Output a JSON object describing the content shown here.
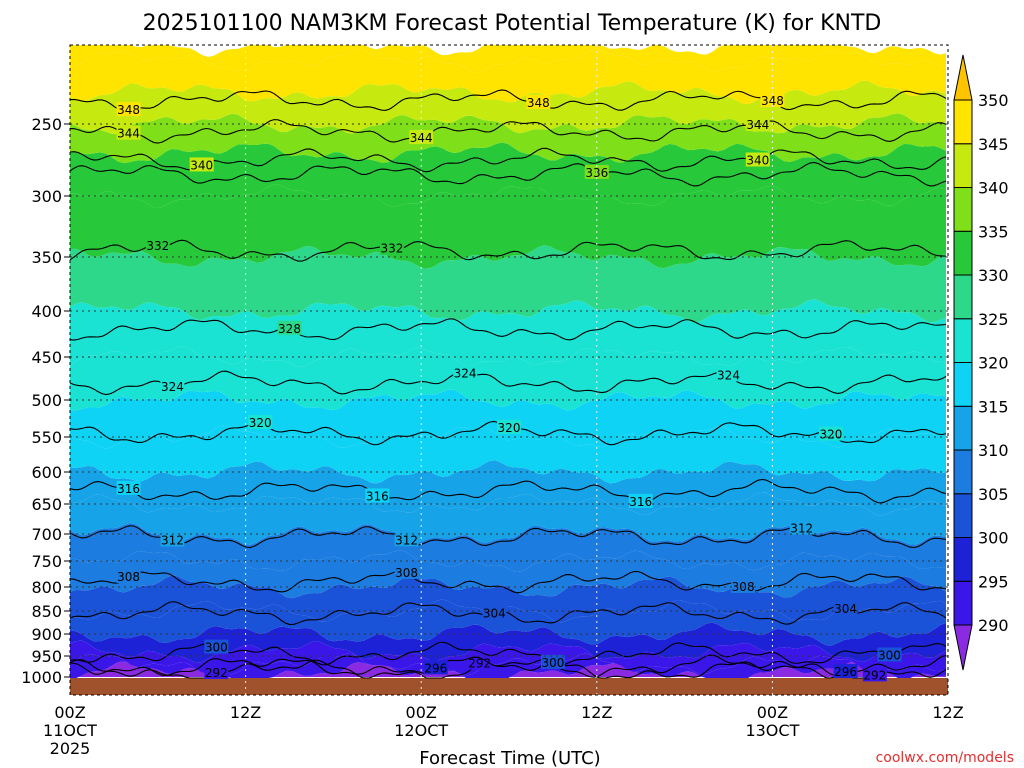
{
  "chart_data": {
    "type": "heatmap",
    "title": "2025101100 NAM3KM Forecast Potential Temperature (K) for KNTD",
    "xlabel": "Forecast Time (UTC)",
    "ylabel": "",
    "credit": "coolwx.com/models",
    "x_range_hours": [
      0,
      60
    ],
    "y_range_hpa": [
      1000,
      200
    ],
    "y_ticks": [
      250,
      300,
      350,
      400,
      450,
      500,
      550,
      600,
      650,
      700,
      750,
      800,
      850,
      900,
      950,
      1000
    ],
    "x_ticks": [
      {
        "hour": 0,
        "l1": "00Z",
        "l2": "11OCT",
        "l3": "2025"
      },
      {
        "hour": 12,
        "l1": "12Z",
        "l2": "",
        "l3": ""
      },
      {
        "hour": 24,
        "l1": "00Z",
        "l2": "12OCT",
        "l3": ""
      },
      {
        "hour": 36,
        "l1": "12Z",
        "l2": "",
        "l3": ""
      },
      {
        "hour": 48,
        "l1": "00Z",
        "l2": "13OCT",
        "l3": ""
      },
      {
        "hour": 60,
        "l1": "12Z",
        "l2": "",
        "l3": ""
      }
    ],
    "colorbar": {
      "levels": [
        290,
        295,
        300,
        305,
        310,
        315,
        320,
        325,
        330,
        335,
        340,
        345,
        350
      ],
      "colors": [
        "#8a2be2",
        "#3b16e8",
        "#1e22d6",
        "#1a52d8",
        "#1c7cdf",
        "#17a3e8",
        "#0fd3f4",
        "#1be3d3",
        "#2ed88a",
        "#27c93a",
        "#7fe01a",
        "#c6ea0f",
        "#ffe400",
        "#ffc400"
      ]
    },
    "bands": [
      {
        "p": 1000,
        "theta": 288
      },
      {
        "p": 990,
        "theta": 291
      },
      {
        "p": 970,
        "theta": 294
      },
      {
        "p": 940,
        "theta": 298
      },
      {
        "p": 900,
        "theta": 302
      },
      {
        "p": 850,
        "theta": 304.5
      },
      {
        "p": 800,
        "theta": 306
      },
      {
        "p": 750,
        "theta": 308
      },
      {
        "p": 700,
        "theta": 310
      },
      {
        "p": 650,
        "theta": 313
      },
      {
        "p": 600,
        "theta": 315.5
      },
      {
        "p": 550,
        "theta": 318
      },
      {
        "p": 500,
        "theta": 320.5
      },
      {
        "p": 450,
        "theta": 323.5
      },
      {
        "p": 400,
        "theta": 327
      },
      {
        "p": 350,
        "theta": 331
      },
      {
        "p": 300,
        "theta": 334
      },
      {
        "p": 270,
        "theta": 337
      },
      {
        "p": 250,
        "theta": 342
      },
      {
        "p": 230,
        "theta": 346
      },
      {
        "p": 210,
        "theta": 349
      },
      {
        "p": 200,
        "theta": 351
      }
    ],
    "contours": [
      {
        "theta": 292,
        "p": 985,
        "labels": [
          {
            "hour": 10,
            "text": "292"
          },
          {
            "hour": 28,
            "text": "292"
          },
          {
            "hour": 55,
            "text": "292"
          }
        ]
      },
      {
        "theta": 296,
        "p": 975,
        "labels": [
          {
            "hour": 25,
            "text": "296"
          },
          {
            "hour": 53,
            "text": "296"
          }
        ]
      },
      {
        "theta": 300,
        "p": 945,
        "labels": [
          {
            "hour": 10,
            "text": "300"
          },
          {
            "hour": 33,
            "text": "300"
          },
          {
            "hour": 56,
            "text": "300"
          }
        ]
      },
      {
        "theta": 304,
        "p": 855,
        "labels": [
          {
            "hour": 29,
            "text": "304"
          },
          {
            "hour": 53,
            "text": "304"
          }
        ]
      },
      {
        "theta": 308,
        "p": 790,
        "labels": [
          {
            "hour": 4,
            "text": "308"
          },
          {
            "hour": 23,
            "text": "308"
          },
          {
            "hour": 46,
            "text": "308"
          }
        ]
      },
      {
        "theta": 312,
        "p": 705,
        "labels": [
          {
            "hour": 7,
            "text": "312"
          },
          {
            "hour": 23,
            "text": "312"
          },
          {
            "hour": 50,
            "text": "312"
          }
        ]
      },
      {
        "theta": 316,
        "p": 630,
        "labels": [
          {
            "hour": 4,
            "text": "316"
          },
          {
            "hour": 21,
            "text": "316"
          },
          {
            "hour": 39,
            "text": "316"
          }
        ]
      },
      {
        "theta": 320,
        "p": 545,
        "labels": [
          {
            "hour": 13,
            "text": "320"
          },
          {
            "hour": 30,
            "text": "320"
          },
          {
            "hour": 52,
            "text": "320"
          }
        ]
      },
      {
        "theta": 324,
        "p": 480,
        "labels": [
          {
            "hour": 7,
            "text": "324"
          },
          {
            "hour": 27,
            "text": "324"
          },
          {
            "hour": 45,
            "text": "324"
          }
        ]
      },
      {
        "theta": 328,
        "p": 420,
        "labels": [
          {
            "hour": 15,
            "text": "328"
          }
        ]
      },
      {
        "theta": 332,
        "p": 345,
        "labels": [
          {
            "hour": 6,
            "text": "332"
          },
          {
            "hour": 22,
            "text": "332"
          }
        ]
      },
      {
        "theta": 336,
        "p": 285,
        "labels": [
          {
            "hour": 36,
            "text": "336"
          }
        ]
      },
      {
        "theta": 340,
        "p": 275,
        "labels": [
          {
            "hour": 9,
            "text": "340"
          },
          {
            "hour": 47,
            "text": "340"
          }
        ]
      },
      {
        "theta": 344,
        "p": 255,
        "labels": [
          {
            "hour": 4,
            "text": "344"
          },
          {
            "hour": 24,
            "text": "344"
          },
          {
            "hour": 47,
            "text": "344"
          }
        ]
      },
      {
        "theta": 348,
        "p": 235,
        "labels": [
          {
            "hour": 4,
            "text": "348"
          },
          {
            "hour": 32,
            "text": "348"
          },
          {
            "hour": 48,
            "text": "348"
          }
        ]
      }
    ]
  }
}
